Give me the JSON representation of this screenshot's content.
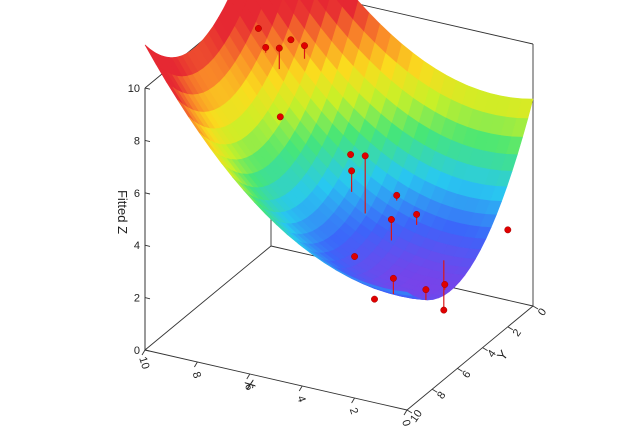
{
  "chart_data": {
    "type": "surface3d",
    "title": "",
    "axes": {
      "x": {
        "label": "X",
        "range": [
          0,
          10
        ],
        "ticks": [
          "0",
          "2",
          "4",
          "6",
          "8",
          "10"
        ]
      },
      "y": {
        "label": "Y",
        "range": [
          0,
          10
        ],
        "ticks": [
          "0",
          "2",
          "4",
          "6",
          "8",
          "10"
        ]
      },
      "z": {
        "label": "Fitted Z",
        "range": [
          0,
          10
        ],
        "ticks": [
          "0",
          "2",
          "4",
          "6",
          "8",
          "10"
        ]
      }
    },
    "surface": {
      "fit": "quadratic",
      "colormap": "rainbow",
      "z_min": 2.9,
      "z_max": 10
    },
    "points": [
      {
        "x": 10,
        "y": 1,
        "z": 8.7,
        "fitted_z": 8.7
      },
      {
        "x": 9,
        "y": 0.5,
        "z": 8.3,
        "fitted_z": 8.4
      },
      {
        "x": 9,
        "y": 2.5,
        "z": 8.8,
        "fitted_z": 8.6
      },
      {
        "x": 8,
        "y": 1.5,
        "z": 8.7,
        "fitted_z": 8.2
      },
      {
        "x": 8,
        "y": 3.5,
        "z": 9.4,
        "fitted_z": 8.6
      },
      {
        "x": 7,
        "y": 5.5,
        "z": 7.8,
        "fitted_z": 7.7
      },
      {
        "x": 6,
        "y": 2.0,
        "z": 5.2,
        "fitted_z": 5.3
      },
      {
        "x": 5,
        "y": 4.0,
        "z": 5.6,
        "fitted_z": 4.8
      },
      {
        "x": 4,
        "y": 5.0,
        "z": 6.8,
        "fitted_z": 4.6
      },
      {
        "x": 4,
        "y": 2.5,
        "z": 4.3,
        "fitted_z": 4.1
      },
      {
        "x": 3,
        "y": 3.0,
        "z": 4.0,
        "fitted_z": 3.6
      },
      {
        "x": 3,
        "y": 5.0,
        "z": 4.6,
        "fitted_z": 3.8
      },
      {
        "x": 1,
        "y": 5.0,
        "z": 1.6,
        "fitted_z": 3.5
      },
      {
        "x": 0,
        "y": 7.0,
        "z": 3.6,
        "fitted_z": 3.4
      },
      {
        "x": 0,
        "y": 8.5,
        "z": 4.0,
        "fitted_z": 3.6
      },
      {
        "x": 1,
        "y": 9.0,
        "z": 4.4,
        "fitted_z": 3.8
      },
      {
        "x": 1,
        "y": 10.5,
        "z": 4.2,
        "fitted_z": 4.1
      },
      {
        "x": 2,
        "y": 10.0,
        "z": 5.4,
        "fitted_z": 5.3
      },
      {
        "x": 0,
        "y": 2.0,
        "z": 3.7,
        "fitted_z": 3.6
      }
    ],
    "colors": {
      "point": "#e00000",
      "drop_line": "#d81818",
      "frame": "#333333"
    },
    "grid": false,
    "legend": "none"
  }
}
